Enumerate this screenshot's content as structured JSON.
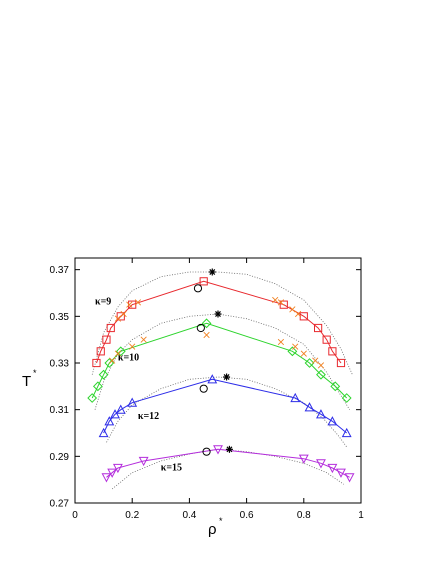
{
  "chart_data": {
    "type": "scatter",
    "xlabel": "ρ",
    "xlabel_sup": "*",
    "ylabel": "T",
    "ylabel_sup": "*",
    "xlim": [
      0,
      1
    ],
    "ylim": [
      0.27,
      0.375
    ],
    "xticks": [
      "0",
      "0.2",
      "0.4",
      "0.6",
      "0.8",
      "1"
    ],
    "yticks": [
      "0.27",
      "0.29",
      "0.31",
      "0.33",
      "0.35",
      "0.37"
    ],
    "series": [
      {
        "label": "κ=9",
        "color": "#e8282d",
        "marker": "square",
        "line": [
          [
            0.075,
            0.33
          ],
          [
            0.09,
            0.335
          ],
          [
            0.11,
            0.34
          ],
          [
            0.125,
            0.345
          ],
          [
            0.16,
            0.35
          ],
          [
            0.2,
            0.355
          ],
          [
            0.45,
            0.365
          ],
          [
            0.73,
            0.355
          ],
          [
            0.8,
            0.35
          ],
          [
            0.85,
            0.345
          ],
          [
            0.88,
            0.34
          ],
          [
            0.9,
            0.335
          ],
          [
            0.93,
            0.33
          ]
        ],
        "crosses": [
          [
            0.15,
            0.349
          ],
          [
            0.17,
            0.351
          ],
          [
            0.19,
            0.355
          ],
          [
            0.22,
            0.356
          ],
          [
            0.7,
            0.357
          ],
          [
            0.72,
            0.356
          ],
          [
            0.76,
            0.353
          ],
          [
            0.78,
            0.351
          ]
        ],
        "fit": [
          [
            0.06,
            0.325
          ],
          [
            0.1,
            0.343
          ],
          [
            0.15,
            0.354
          ],
          [
            0.2,
            0.361
          ],
          [
            0.3,
            0.367
          ],
          [
            0.4,
            0.369
          ],
          [
            0.5,
            0.369
          ],
          [
            0.6,
            0.368
          ],
          [
            0.7,
            0.364
          ],
          [
            0.8,
            0.357
          ],
          [
            0.88,
            0.346
          ],
          [
            0.93,
            0.336
          ],
          [
            0.97,
            0.325
          ]
        ],
        "circle": [
          0.43,
          0.362
        ],
        "star": [
          0.48,
          0.369
        ],
        "label_at": [
          0.07,
          0.355
        ]
      },
      {
        "label": "κ=10",
        "color": "#2dd42d",
        "marker": "diamond",
        "line": [
          [
            0.06,
            0.315
          ],
          [
            0.08,
            0.32
          ],
          [
            0.1,
            0.325
          ],
          [
            0.12,
            0.33
          ],
          [
            0.16,
            0.335
          ],
          [
            0.46,
            0.347
          ],
          [
            0.76,
            0.335
          ],
          [
            0.82,
            0.33
          ],
          [
            0.86,
            0.325
          ],
          [
            0.91,
            0.32
          ],
          [
            0.95,
            0.315
          ]
        ],
        "crosses": [
          [
            0.13,
            0.331
          ],
          [
            0.15,
            0.334
          ],
          [
            0.2,
            0.337
          ],
          [
            0.24,
            0.34
          ],
          [
            0.46,
            0.342
          ],
          [
            0.72,
            0.339
          ],
          [
            0.77,
            0.337
          ],
          [
            0.8,
            0.334
          ],
          [
            0.84,
            0.331
          ],
          [
            0.86,
            0.329
          ]
        ],
        "fit": [
          [
            0.07,
            0.31
          ],
          [
            0.1,
            0.322
          ],
          [
            0.15,
            0.334
          ],
          [
            0.2,
            0.34
          ],
          [
            0.3,
            0.347
          ],
          [
            0.4,
            0.35
          ],
          [
            0.5,
            0.351
          ],
          [
            0.6,
            0.349
          ],
          [
            0.7,
            0.345
          ],
          [
            0.8,
            0.338
          ],
          [
            0.88,
            0.326
          ],
          [
            0.93,
            0.316
          ],
          [
            0.96,
            0.31
          ]
        ],
        "circle": [
          0.44,
          0.345
        ],
        "star": [
          0.5,
          0.351
        ],
        "label_at": [
          0.15,
          0.331
        ]
      },
      {
        "label": "κ=12",
        "color": "#2d2de8",
        "marker": "triangle-up",
        "line": [
          [
            0.1,
            0.3
          ],
          [
            0.12,
            0.305
          ],
          [
            0.14,
            0.308
          ],
          [
            0.16,
            0.31
          ],
          [
            0.2,
            0.313
          ],
          [
            0.48,
            0.323
          ],
          [
            0.77,
            0.315
          ],
          [
            0.82,
            0.311
          ],
          [
            0.86,
            0.308
          ],
          [
            0.9,
            0.305
          ],
          [
            0.95,
            0.3
          ]
        ],
        "crosses": [],
        "fit": [
          [
            0.11,
            0.296
          ],
          [
            0.15,
            0.305
          ],
          [
            0.2,
            0.312
          ],
          [
            0.3,
            0.319
          ],
          [
            0.4,
            0.323
          ],
          [
            0.5,
            0.324
          ],
          [
            0.6,
            0.323
          ],
          [
            0.7,
            0.319
          ],
          [
            0.8,
            0.313
          ],
          [
            0.87,
            0.306
          ],
          [
            0.92,
            0.299
          ],
          [
            0.95,
            0.294
          ]
        ],
        "circle": [
          0.45,
          0.319
        ],
        "star": [
          0.53,
          0.324
        ],
        "label_at": [
          0.22,
          0.306
        ]
      },
      {
        "label": "κ=15",
        "color": "#b42ddc",
        "marker": "triangle-down",
        "line": [
          [
            0.11,
            0.281
          ],
          [
            0.13,
            0.283
          ],
          [
            0.15,
            0.285
          ],
          [
            0.24,
            0.288
          ],
          [
            0.5,
            0.293
          ],
          [
            0.8,
            0.289
          ],
          [
            0.86,
            0.287
          ],
          [
            0.9,
            0.285
          ],
          [
            0.93,
            0.283
          ],
          [
            0.96,
            0.281
          ]
        ],
        "crosses": [],
        "fit": [
          [
            0.13,
            0.276
          ],
          [
            0.2,
            0.283
          ],
          [
            0.3,
            0.288
          ],
          [
            0.4,
            0.291
          ],
          [
            0.5,
            0.293
          ],
          [
            0.6,
            0.292
          ],
          [
            0.7,
            0.29
          ],
          [
            0.8,
            0.287
          ],
          [
            0.88,
            0.283
          ],
          [
            0.94,
            0.278
          ]
        ],
        "circle": [
          0.46,
          0.292
        ],
        "star": [
          0.54,
          0.293
        ],
        "label_at": [
          0.3,
          0.284
        ]
      }
    ]
  }
}
